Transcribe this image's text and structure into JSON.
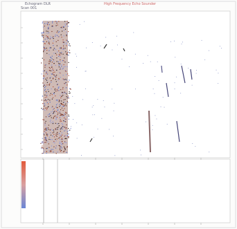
{
  "header": {
    "title": "Echogram DLR",
    "subtitle": "High Frequency Echo Sounder",
    "scan": "Scan 001"
  }
}
